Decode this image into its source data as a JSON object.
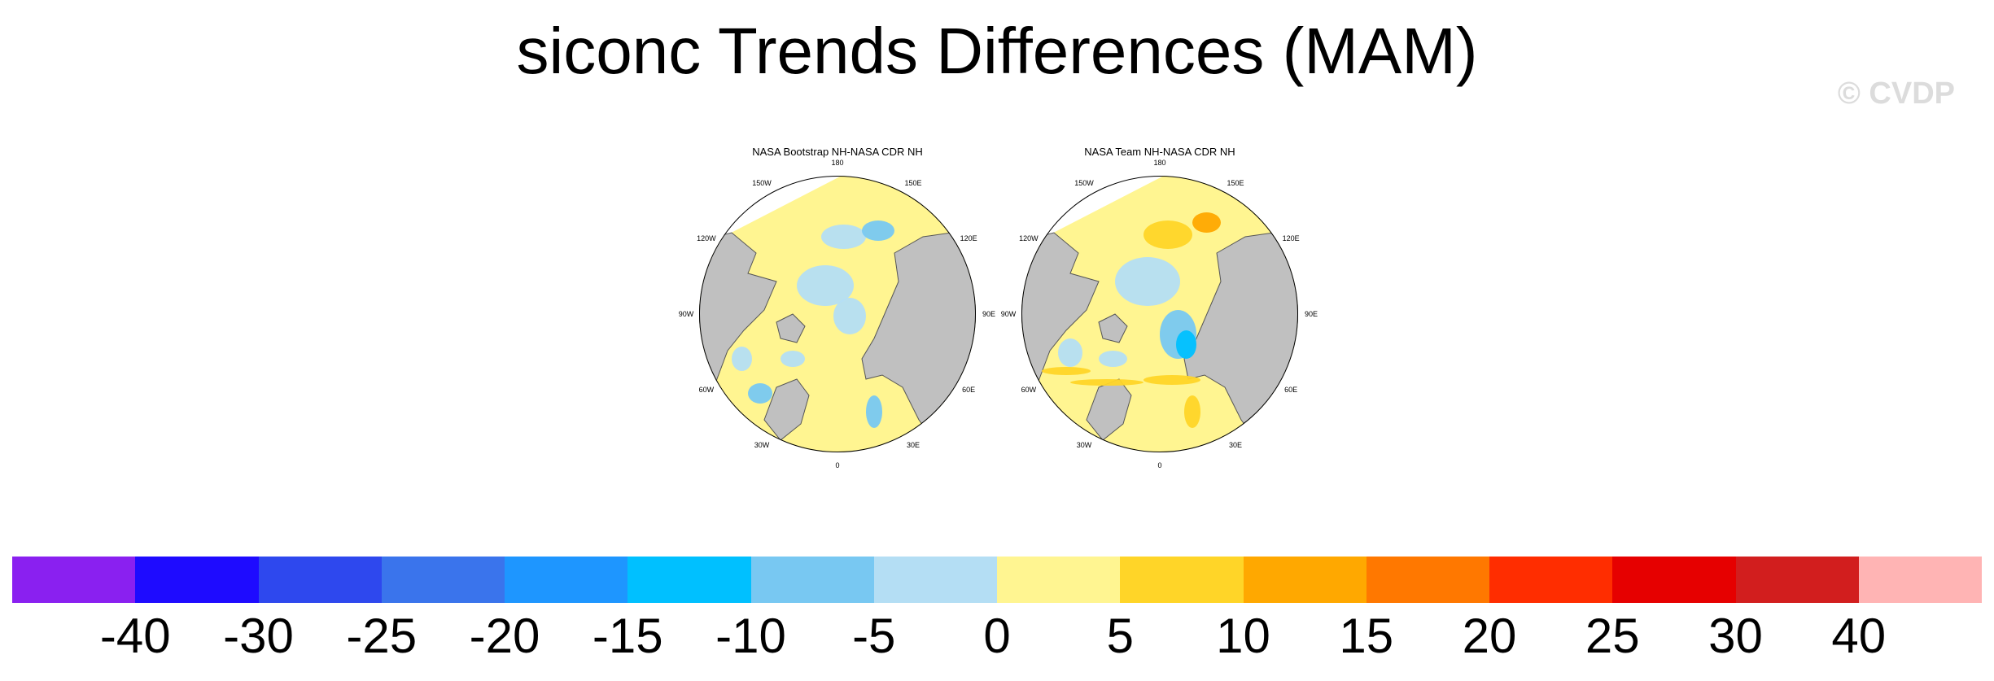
{
  "title": "siconc Trends Differences (MAM)",
  "watermark": "© CVDP",
  "panels": [
    {
      "title": "NASA Bootstrap NH-NASA CDR NH"
    },
    {
      "title": "NASA Team NH-NASA CDR NH"
    }
  ],
  "longitude_labels": [
    "180",
    "150E",
    "120E",
    "90E",
    "60E",
    "30E",
    "0",
    "30W",
    "60W",
    "90W",
    "120W",
    "150W"
  ],
  "colorbar": {
    "colors": [
      "#8a20f0",
      "#1e0bff",
      "#2e48ee",
      "#3a74ec",
      "#1e96ff",
      "#00c0ff",
      "#78c8f2",
      "#b4def4",
      "#fff591",
      "#ffd528",
      "#ffa800",
      "#ff7800",
      "#ff2d00",
      "#e60000",
      "#d21e1e",
      "#ffb4b4"
    ],
    "tick_labels": [
      "-40",
      "-30",
      "-25",
      "-20",
      "-15",
      "-10",
      "-5",
      "0",
      "5",
      "10",
      "15",
      "20",
      "25",
      "30",
      "40"
    ]
  },
  "style": {
    "land": "#c0c0c0",
    "coast": "#555555"
  }
}
